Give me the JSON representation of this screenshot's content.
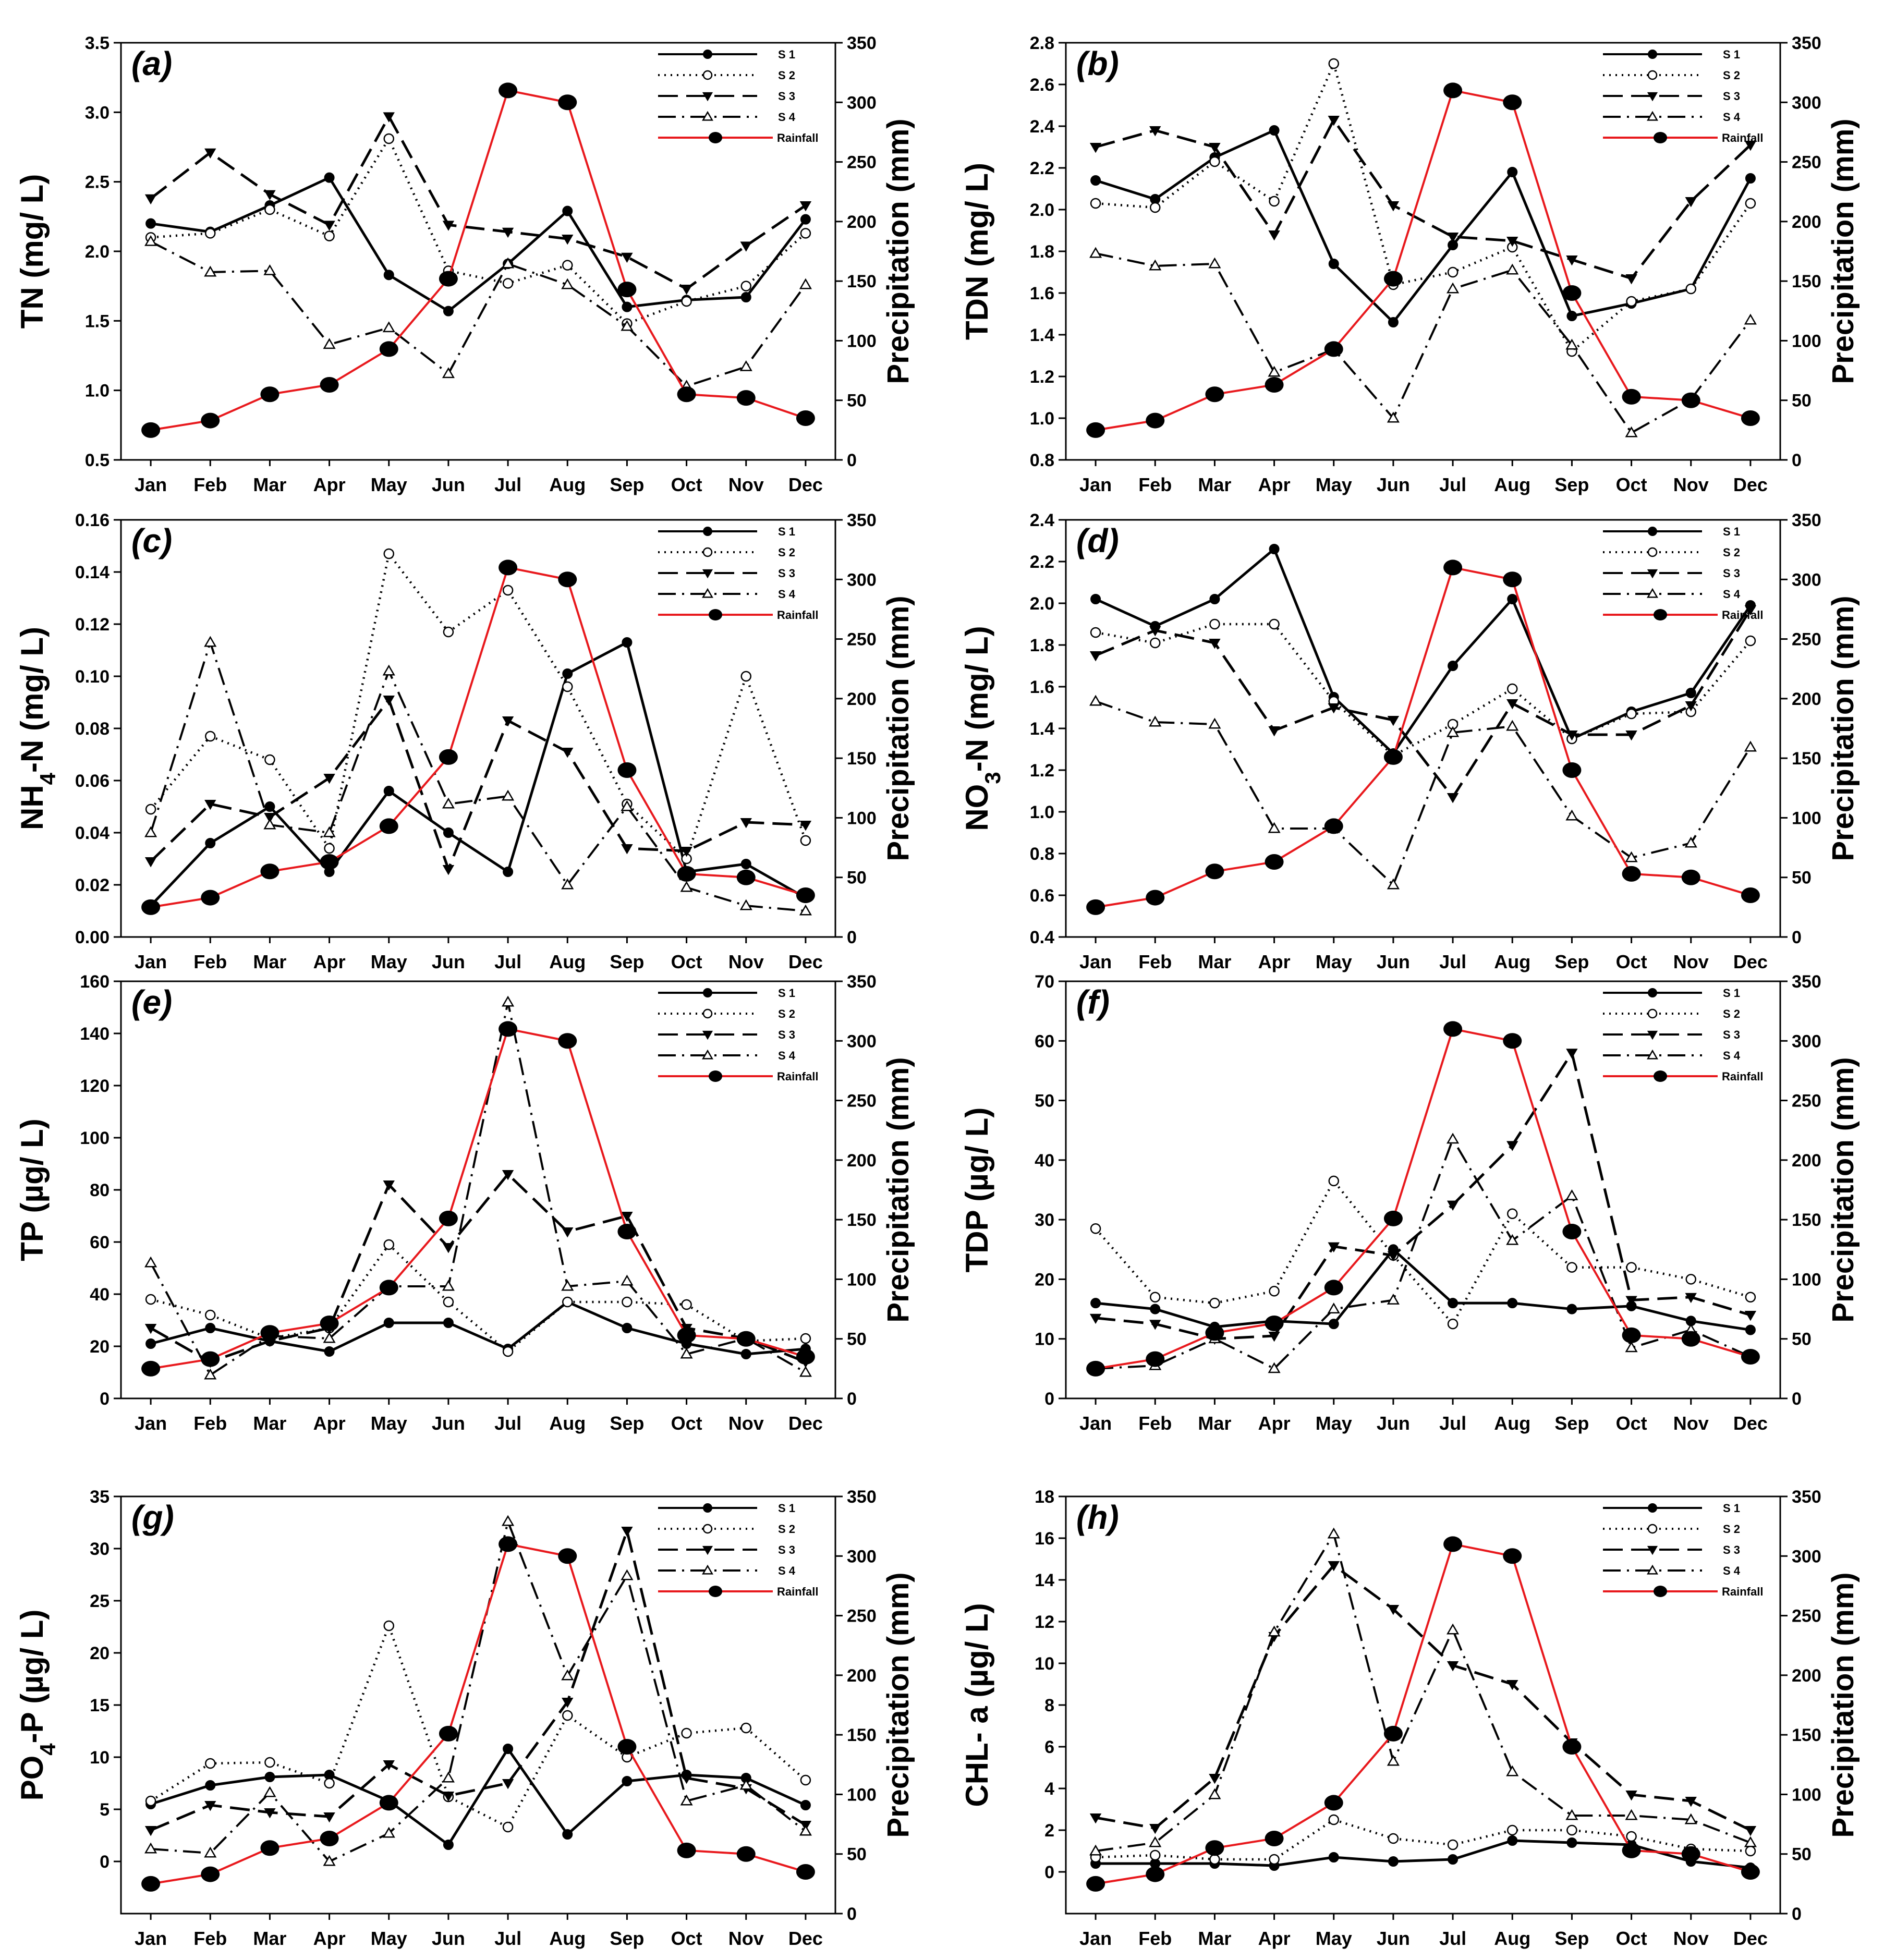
{
  "figure_title": "",
  "chart_data": [
    {
      "type": "line",
      "panel": "(a)",
      "ylabel": "TN (mg/ L)",
      "y2label": "Precipitation (mm)",
      "ylim": [
        0.5,
        3.5
      ],
      "yticks": [
        0.5,
        1.0,
        1.5,
        2.0,
        2.5,
        3.0,
        3.5
      ],
      "ytick_labels": [
        "0.5",
        "1.0",
        "1.5",
        "2.0",
        "2.5",
        "3.0",
        "3.5"
      ],
      "y2lim": [
        0,
        350
      ],
      "y2ticks": [
        0,
        50,
        100,
        150,
        200,
        250,
        300,
        350
      ],
      "categories": [
        "Jan",
        "Feb",
        "Mar",
        "Apr",
        "May",
        "Jun",
        "Jul",
        "Aug",
        "Sep",
        "Oct",
        "Nov",
        "Dec"
      ],
      "series": [
        {
          "name": "S 1",
          "values": [
            2.2,
            2.14,
            2.33,
            2.53,
            1.83,
            1.57,
            1.91,
            2.29,
            1.6,
            1.65,
            1.67,
            2.23
          ]
        },
        {
          "name": "S 2",
          "values": [
            2.1,
            2.13,
            2.3,
            2.11,
            2.81,
            1.86,
            1.77,
            1.9,
            1.48,
            1.64,
            1.75,
            2.13
          ]
        },
        {
          "name": "S 3",
          "values": [
            2.38,
            2.71,
            2.41,
            2.19,
            2.97,
            2.19,
            2.14,
            2.09,
            1.96,
            1.73,
            2.04,
            2.33
          ]
        },
        {
          "name": "S 4",
          "values": [
            2.07,
            1.85,
            1.86,
            1.33,
            1.45,
            1.12,
            1.91,
            1.76,
            1.46,
            1.03,
            1.17,
            1.76
          ]
        }
      ],
      "secondary_series": {
        "name": "Rainfall",
        "values": [
          25,
          33,
          55,
          63,
          93,
          152,
          310,
          300,
          143,
          55,
          52,
          35
        ]
      },
      "legend": [
        "S 1",
        "S 2",
        "S 3",
        "S 4",
        "Rainfall"
      ],
      "legend_position": "top-right"
    },
    {
      "type": "line",
      "panel": "(b)",
      "ylabel": "TDN (mg/ L)",
      "y2label": "Precipitation (mm)",
      "ylim": [
        0.8,
        2.8
      ],
      "yticks": [
        0.8,
        1.0,
        1.2,
        1.4,
        1.6,
        1.8,
        2.0,
        2.2,
        2.4,
        2.6,
        2.8
      ],
      "ytick_labels": [
        "0.8",
        "1.0",
        "1.2",
        "1.4",
        "1.6",
        "1.8",
        "2.0",
        "2.2",
        "2.4",
        "2.6",
        "2.8"
      ],
      "y2lim": [
        0,
        350
      ],
      "y2ticks": [
        0,
        50,
        100,
        150,
        200,
        250,
        300,
        350
      ],
      "categories": [
        "Jan",
        "Feb",
        "Mar",
        "Apr",
        "May",
        "Jun",
        "Jul",
        "Aug",
        "Sep",
        "Oct",
        "Nov",
        "Dec"
      ],
      "series": [
        {
          "name": "S 1",
          "values": [
            2.14,
            2.05,
            2.25,
            2.38,
            1.74,
            1.46,
            1.83,
            2.18,
            1.49,
            1.55,
            1.62,
            2.15
          ]
        },
        {
          "name": "S 2",
          "values": [
            2.03,
            2.01,
            2.23,
            2.04,
            2.7,
            1.64,
            1.7,
            1.82,
            1.32,
            1.56,
            1.62,
            2.03
          ]
        },
        {
          "name": "S 3",
          "values": [
            2.3,
            2.38,
            2.3,
            1.88,
            2.43,
            2.02,
            1.87,
            1.85,
            1.76,
            1.67,
            2.04,
            2.31
          ]
        },
        {
          "name": "S 4",
          "values": [
            1.79,
            1.73,
            1.74,
            1.22,
            1.33,
            1.0,
            1.62,
            1.71,
            1.35,
            0.93,
            1.09,
            1.47
          ]
        }
      ],
      "secondary_series": {
        "name": "Rainfall",
        "values": [
          25,
          33,
          55,
          63,
          93,
          152,
          310,
          300,
          140,
          53,
          50,
          35
        ]
      },
      "legend": [
        "S 1",
        "S 2",
        "S 3",
        "S 4",
        "Rainfall"
      ],
      "legend_position": "top-right"
    },
    {
      "type": "line",
      "panel": "(c)",
      "ylabel": "NH4-N (mg/ L)",
      "y2label": "Precipitation (mm)",
      "ylim": [
        0.0,
        0.16
      ],
      "yticks": [
        0.0,
        0.02,
        0.04,
        0.06,
        0.08,
        0.1,
        0.12,
        0.14,
        0.16
      ],
      "ytick_labels": [
        "0.00",
        "0.02",
        "0.04",
        "0.06",
        "0.08",
        "0.10",
        "0.12",
        "0.14",
        "0.16"
      ],
      "y2lim": [
        0,
        350
      ],
      "y2ticks": [
        0,
        50,
        100,
        150,
        200,
        250,
        300,
        350
      ],
      "categories": [
        "Jan",
        "Feb",
        "Mar",
        "Apr",
        "May",
        "Jun",
        "Jul",
        "Aug",
        "Sep",
        "Oct",
        "Nov",
        "Dec"
      ],
      "series": [
        {
          "name": "S 1",
          "values": [
            0.012,
            0.036,
            0.05,
            0.025,
            0.056,
            0.04,
            0.025,
            0.101,
            0.113,
            0.025,
            0.028,
            0.015
          ]
        },
        {
          "name": "S 2",
          "values": [
            0.049,
            0.077,
            0.068,
            0.034,
            0.147,
            0.117,
            0.133,
            0.096,
            0.051,
            0.03,
            0.1,
            0.037
          ]
        },
        {
          "name": "S 3",
          "values": [
            0.029,
            0.051,
            0.046,
            0.061,
            0.091,
            0.026,
            0.083,
            0.071,
            0.034,
            0.033,
            0.044,
            0.043
          ]
        },
        {
          "name": "S 4",
          "values": [
            0.04,
            0.113,
            0.043,
            0.04,
            0.102,
            0.051,
            0.054,
            0.02,
            0.05,
            0.019,
            0.012,
            0.01
          ]
        }
      ],
      "secondary_series": {
        "name": "Rainfall",
        "values": [
          25,
          33,
          55,
          63,
          93,
          151,
          310,
          300,
          140,
          53,
          50,
          35
        ]
      },
      "legend": [
        "S 1",
        "S 2",
        "S 3",
        "S 4",
        "Rainfall"
      ],
      "legend_position": "top-right"
    },
    {
      "type": "line",
      "panel": "(d)",
      "ylabel": "NO3-N (mg/ L)",
      "y2label": "Precipitation (mm)",
      "ylim": [
        0.4,
        2.4
      ],
      "yticks": [
        0.4,
        0.6,
        0.8,
        1.0,
        1.2,
        1.4,
        1.6,
        1.8,
        2.0,
        2.2,
        2.4
      ],
      "ytick_labels": [
        "0.4",
        "0.6",
        "0.8",
        "1.0",
        "1.2",
        "1.4",
        "1.6",
        "1.8",
        "2.0",
        "2.2",
        "2.4"
      ],
      "y2lim": [
        0,
        350
      ],
      "y2ticks": [
        0,
        50,
        100,
        150,
        200,
        250,
        300,
        350
      ],
      "categories": [
        "Jan",
        "Feb",
        "Mar",
        "Apr",
        "May",
        "Jun",
        "Jul",
        "Aug",
        "Sep",
        "Oct",
        "Nov",
        "Dec"
      ],
      "series": [
        {
          "name": "S 1",
          "values": [
            2.02,
            1.89,
            2.02,
            2.26,
            1.55,
            1.28,
            1.7,
            2.02,
            1.35,
            1.48,
            1.57,
            1.99
          ]
        },
        {
          "name": "S 2",
          "values": [
            1.86,
            1.81,
            1.9,
            1.9,
            1.53,
            1.27,
            1.42,
            1.59,
            1.35,
            1.47,
            1.48,
            1.82
          ]
        },
        {
          "name": "S 3",
          "values": [
            1.75,
            1.87,
            1.81,
            1.39,
            1.5,
            1.44,
            1.07,
            1.52,
            1.37,
            1.37,
            1.51,
            1.97
          ]
        },
        {
          "name": "S 4",
          "values": [
            1.53,
            1.43,
            1.42,
            0.92,
            0.92,
            0.65,
            1.38,
            1.41,
            0.98,
            0.78,
            0.85,
            1.31
          ]
        }
      ],
      "secondary_series": {
        "name": "Rainfall",
        "values": [
          25,
          33,
          55,
          63,
          93,
          151,
          310,
          300,
          140,
          53,
          50,
          35
        ]
      },
      "legend": [
        "S 1",
        "S 2",
        "S 3",
        "S 4",
        "Rainfall"
      ],
      "legend_position": "top-right"
    },
    {
      "type": "line",
      "panel": "(e)",
      "ylabel": "TP (µg/ L)",
      "y2label": "Precipitation (mm)",
      "ylim": [
        0,
        160
      ],
      "yticks": [
        0,
        20,
        40,
        60,
        80,
        100,
        120,
        140,
        160
      ],
      "ytick_labels": [
        "0",
        "20",
        "40",
        "60",
        "80",
        "100",
        "120",
        "140",
        "160"
      ],
      "y2lim": [
        0,
        350
      ],
      "y2ticks": [
        0,
        50,
        100,
        150,
        200,
        250,
        300,
        350
      ],
      "categories": [
        "Jan",
        "Feb",
        "Mar",
        "Apr",
        "May",
        "Jun",
        "Jul",
        "Aug",
        "Sep",
        "Oct",
        "Nov",
        "Dec"
      ],
      "series": [
        {
          "name": "S 1",
          "values": [
            21,
            27,
            22,
            18,
            29,
            29,
            19,
            37,
            27,
            21,
            17,
            19
          ]
        },
        {
          "name": "S 2",
          "values": [
            38,
            32,
            23,
            27,
            59,
            37,
            18,
            37,
            37,
            36,
            22,
            23
          ]
        },
        {
          "name": "S 3",
          "values": [
            27,
            14,
            22,
            27,
            82,
            58,
            86,
            64,
            70,
            27,
            23,
            14
          ]
        },
        {
          "name": "S 4",
          "values": [
            52,
            9,
            24,
            23,
            43,
            43,
            152,
            43,
            45,
            17,
            23,
            10
          ]
        }
      ],
      "secondary_series": {
        "name": "Rainfall",
        "values": [
          25,
          33,
          55,
          63,
          93,
          151,
          310,
          300,
          140,
          53,
          50,
          35
        ]
      },
      "legend": [
        "S 1",
        "S 2",
        "S 3",
        "S 4",
        "Rainfall"
      ],
      "legend_position": "top-right"
    },
    {
      "type": "line",
      "panel": "(f)",
      "ylabel": "TDP (µg/ L)",
      "y2label": "Precipitation (mm)",
      "ylim": [
        0,
        70
      ],
      "yticks": [
        0,
        10,
        20,
        30,
        40,
        50,
        60,
        70
      ],
      "ytick_labels": [
        "0",
        "10",
        "20",
        "30",
        "40",
        "50",
        "60",
        "70"
      ],
      "y2lim": [
        0,
        350
      ],
      "y2ticks": [
        0,
        50,
        100,
        150,
        200,
        250,
        300,
        350
      ],
      "categories": [
        "Jan",
        "Feb",
        "Mar",
        "Apr",
        "May",
        "Jun",
        "Jul",
        "Aug",
        "Sep",
        "Oct",
        "Nov",
        "Dec"
      ],
      "series": [
        {
          "name": "S 1",
          "values": [
            16,
            15,
            12,
            13,
            12.5,
            25,
            16,
            16,
            15,
            15.5,
            13,
            11.5
          ]
        },
        {
          "name": "S 2",
          "values": [
            28.5,
            17,
            16,
            18,
            36.5,
            24,
            12.5,
            31,
            22,
            22,
            20,
            17
          ]
        },
        {
          "name": "S 3",
          "values": [
            13.5,
            12.5,
            10,
            10.5,
            25.5,
            24,
            32.5,
            42.5,
            58,
            16.5,
            17,
            14
          ]
        },
        {
          "name": "S 4",
          "values": [
            5,
            5.5,
            10,
            5,
            15,
            16.5,
            43.5,
            26.5,
            34,
            8.5,
            11.5,
            7
          ]
        }
      ],
      "secondary_series": {
        "name": "Rainfall",
        "values": [
          25,
          33,
          55,
          63,
          93,
          151,
          310,
          300,
          140,
          53,
          50,
          35
        ]
      },
      "legend": [
        "S 1",
        "S 2",
        "S 3",
        "S 4",
        "Rainfall"
      ],
      "legend_position": "top-right"
    },
    {
      "type": "line",
      "panel": "(g)",
      "ylabel": "PO4-P (µg/ L)",
      "y2label": "Precipitation (mm)",
      "ylim": [
        -5,
        35
      ],
      "yticks": [
        0,
        5,
        10,
        15,
        20,
        25,
        30,
        35
      ],
      "ytick_labels": [
        "0",
        "5",
        "10",
        "15",
        "20",
        "25",
        "30",
        "35"
      ],
      "y2lim": [
        0,
        350
      ],
      "y2ticks": [
        0,
        50,
        100,
        150,
        200,
        250,
        300,
        350
      ],
      "categories": [
        "Jan",
        "Feb",
        "Mar",
        "Apr",
        "May",
        "Jun",
        "Jul",
        "Aug",
        "Sep",
        "Oct",
        "Nov",
        "Dec"
      ],
      "series": [
        {
          "name": "S 1",
          "values": [
            5.5,
            7.3,
            8.1,
            8.3,
            5.8,
            1.6,
            10.8,
            2.6,
            7.7,
            8.3,
            8.0,
            5.4
          ]
        },
        {
          "name": "S 2",
          "values": [
            5.8,
            9.4,
            9.5,
            7.5,
            22.6,
            6.2,
            3.3,
            14.0,
            10.0,
            12.3,
            12.8,
            7.8
          ]
        },
        {
          "name": "S 3",
          "values": [
            3.0,
            5.4,
            4.7,
            4.3,
            9.3,
            6.3,
            7.5,
            15.3,
            31.7,
            8.0,
            7.0,
            3.5
          ]
        },
        {
          "name": "S 4",
          "values": [
            1.2,
            0.8,
            6.6,
            0.0,
            2.7,
            8.0,
            32.6,
            17.8,
            27.4,
            5.8,
            7.3,
            2.9
          ]
        }
      ],
      "secondary_series": {
        "name": "Rainfall",
        "values": [
          25,
          33,
          55,
          63,
          93,
          151,
          310,
          300,
          140,
          53,
          50,
          35
        ]
      },
      "legend": [
        "S 1",
        "S 2",
        "S 3",
        "S 4",
        "Rainfall"
      ],
      "legend_position": "top-right"
    },
    {
      "type": "line",
      "panel": "(h)",
      "ylabel": "CHL- a (µg/ L)",
      "y2label": "Precipitation (mm)",
      "ylim": [
        -2,
        18
      ],
      "yticks": [
        0,
        2,
        4,
        6,
        8,
        10,
        12,
        14,
        16,
        18
      ],
      "ytick_labels": [
        "0",
        "2",
        "4",
        "6",
        "8",
        "10",
        "12",
        "14",
        "16",
        "18"
      ],
      "y2lim": [
        0,
        350
      ],
      "y2ticks": [
        0,
        50,
        100,
        150,
        200,
        250,
        300,
        350
      ],
      "categories": [
        "Jan",
        "Feb",
        "Mar",
        "Apr",
        "May",
        "Jun",
        "Jul",
        "Aug",
        "Sep",
        "Oct",
        "Nov",
        "Dec"
      ],
      "series": [
        {
          "name": "S 1",
          "values": [
            0.4,
            0.4,
            0.4,
            0.3,
            0.7,
            0.5,
            0.6,
            1.5,
            1.4,
            1.3,
            0.5,
            0.2
          ]
        },
        {
          "name": "S 2",
          "values": [
            0.7,
            0.8,
            0.6,
            0.6,
            2.5,
            1.6,
            1.3,
            2.0,
            2.0,
            1.7,
            1.1,
            1.0
          ]
        },
        {
          "name": "S 3",
          "values": [
            2.6,
            2.1,
            4.5,
            11.3,
            14.7,
            12.6,
            9.9,
            9.0,
            6.2,
            3.7,
            3.4,
            2.0
          ]
        },
        {
          "name": "S 4",
          "values": [
            1.0,
            1.4,
            3.7,
            11.5,
            16.2,
            5.3,
            11.6,
            4.8,
            2.7,
            2.7,
            2.5,
            1.4
          ]
        }
      ],
      "secondary_series": {
        "name": "Rainfall",
        "values": [
          25,
          33,
          55,
          63,
          93,
          151,
          310,
          300,
          140,
          53,
          50,
          35
        ]
      },
      "legend": [
        "S 1",
        "S 2",
        "S 3",
        "S 4",
        "Rainfall"
      ],
      "legend_position": "top-right"
    }
  ]
}
